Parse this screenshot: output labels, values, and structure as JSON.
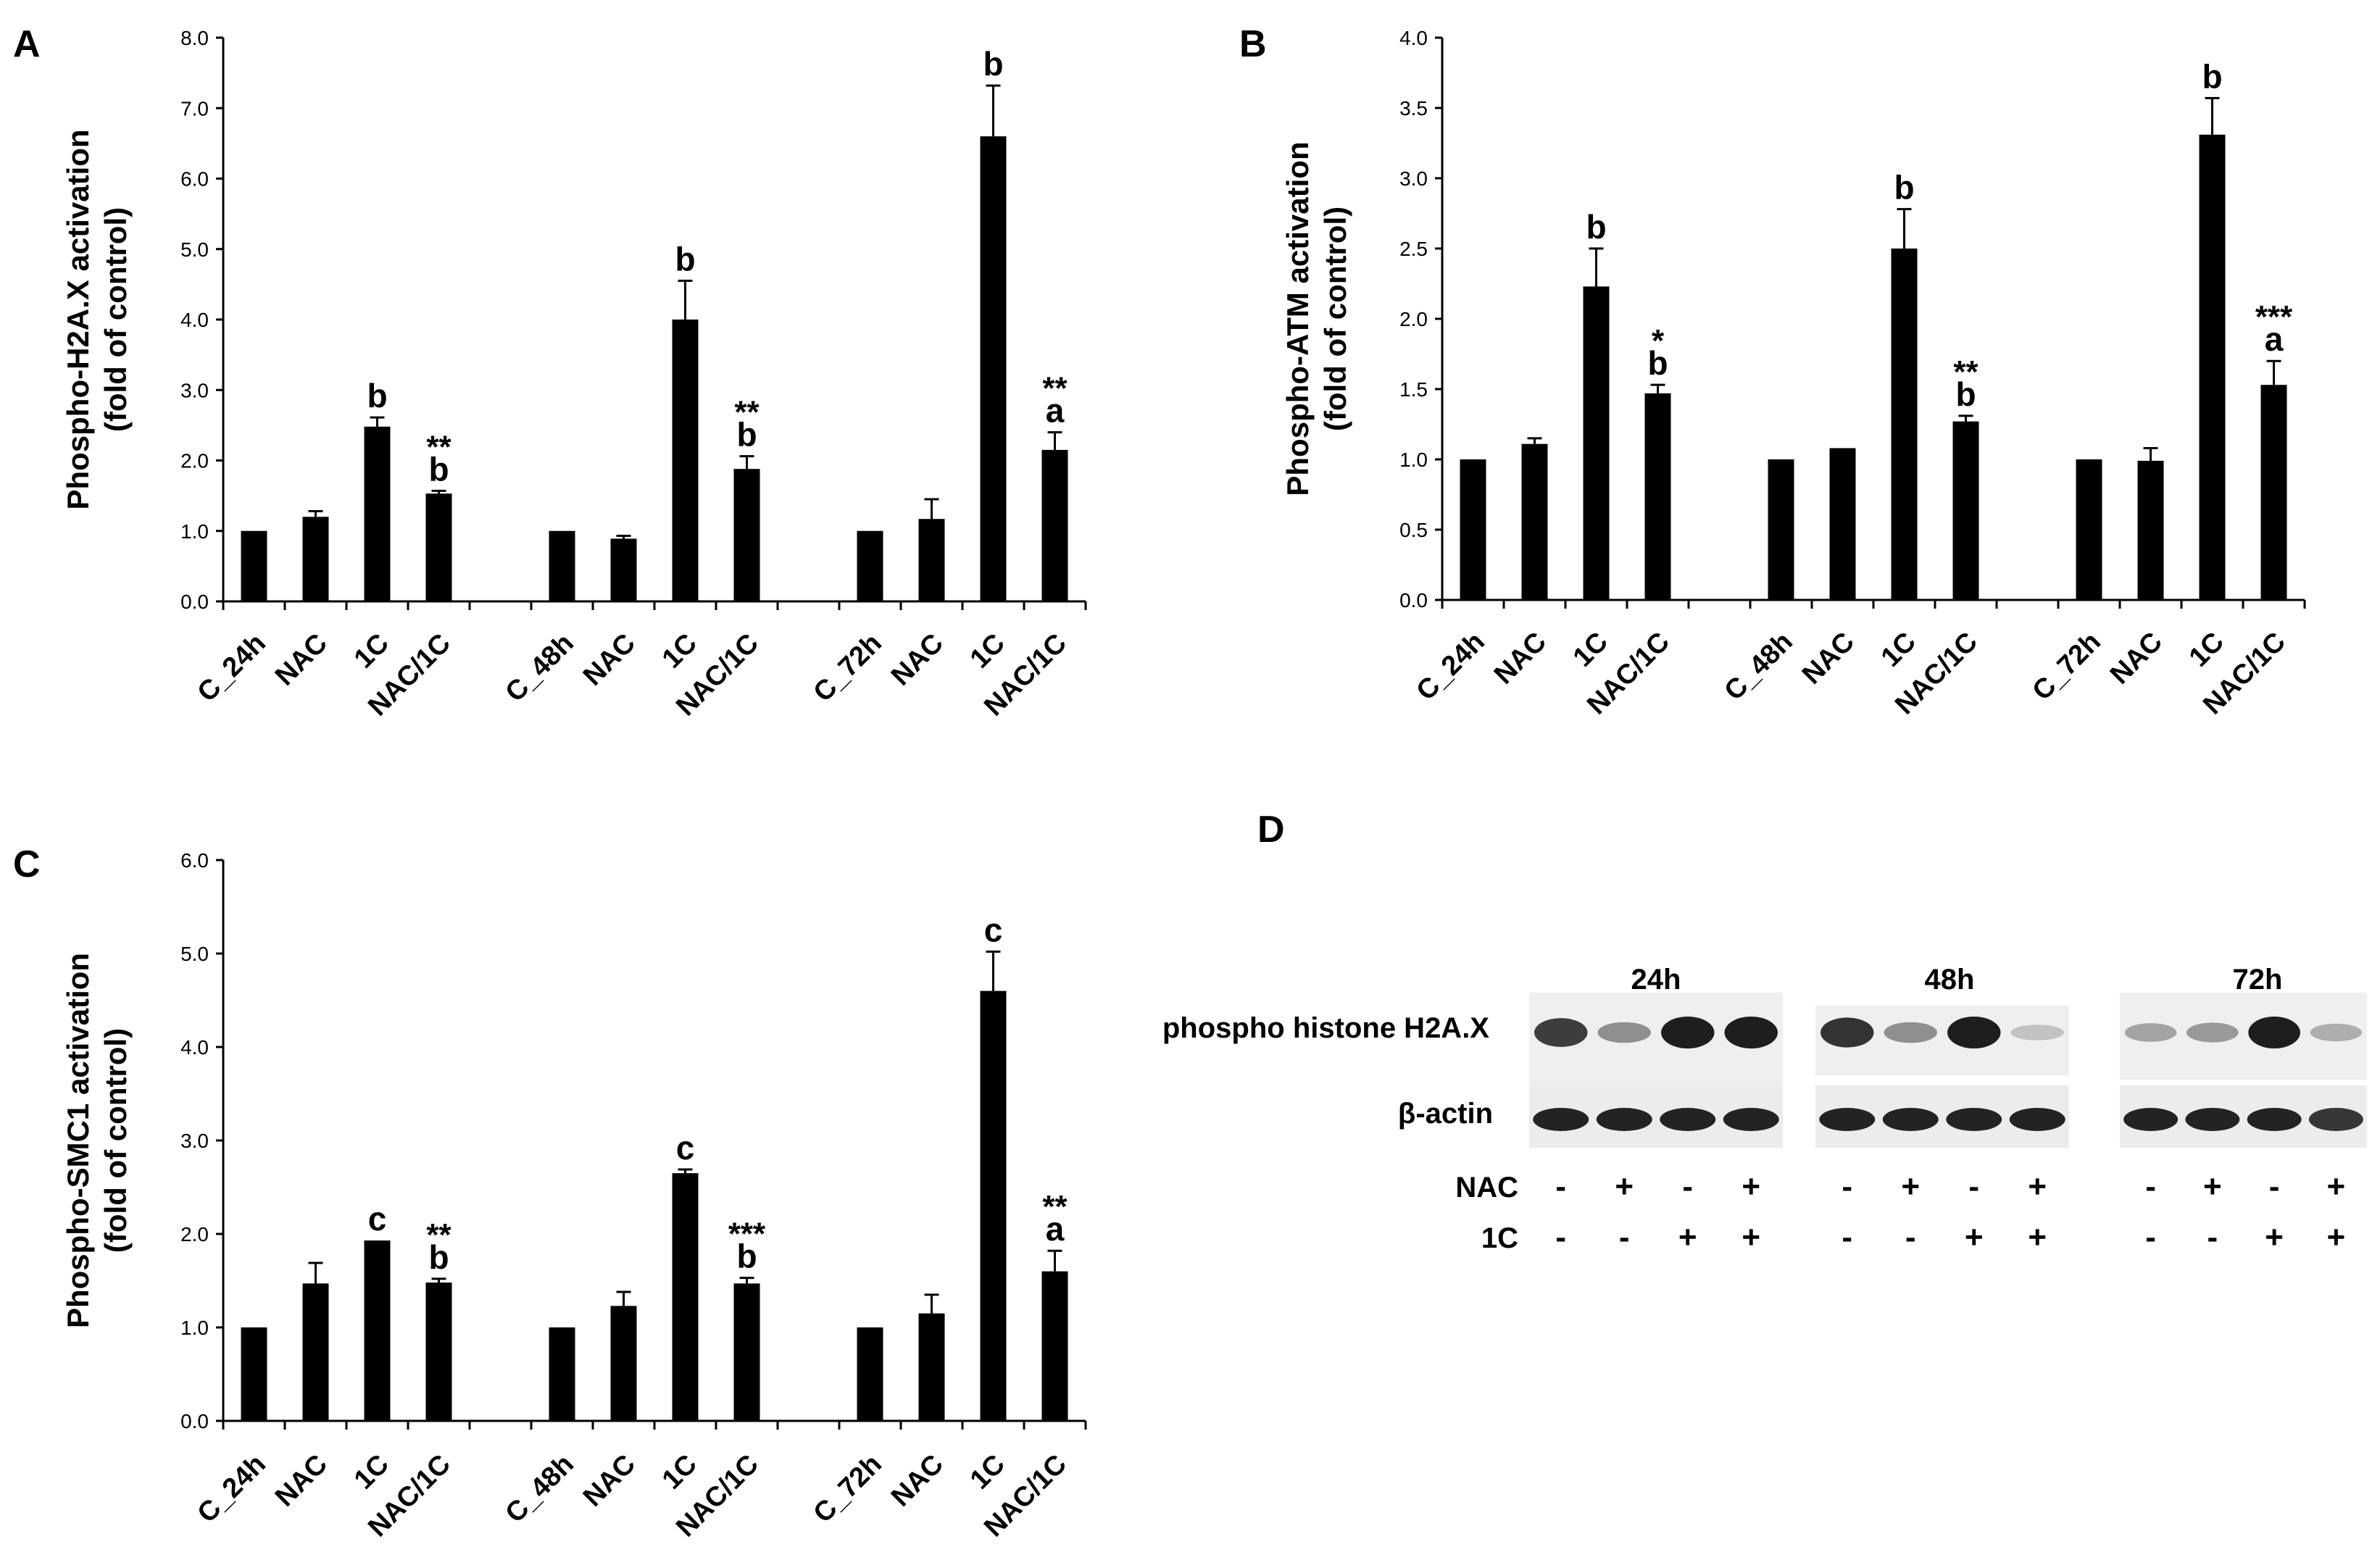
{
  "chart_data": [
    {
      "panel": "A",
      "type": "bar",
      "ylabel_line1": "Phospho-H2A.X activation",
      "ylabel_line2": "(fold of control)",
      "ylim": [
        0,
        8
      ],
      "yticks": [
        "0.0",
        "1.0",
        "2.0",
        "3.0",
        "4.0",
        "5.0",
        "6.0",
        "7.0",
        "8.0"
      ],
      "categories": [
        "C_24h",
        "NAC",
        "1C",
        "NAC/1C",
        "C_48h",
        "NAC",
        "1C",
        "NAC/1C",
        "C_72h",
        "NAC",
        "1C",
        "NAC/1C"
      ],
      "values": [
        1.0,
        1.2,
        2.48,
        1.53,
        1.0,
        0.89,
        4.0,
        1.88,
        1.0,
        1.17,
        6.6,
        2.15
      ],
      "errors": [
        0.0,
        0.08,
        0.13,
        0.04,
        0.0,
        0.04,
        0.55,
        0.18,
        0.0,
        0.28,
        0.72,
        0.25
      ],
      "letters": [
        "",
        "",
        "b",
        "b",
        "",
        "",
        "b",
        "b",
        "",
        "",
        "b",
        "a"
      ],
      "stars": [
        "",
        "",
        "",
        "**",
        "",
        "",
        "",
        "**",
        "",
        "",
        "",
        "**"
      ]
    },
    {
      "panel": "B",
      "type": "bar",
      "ylabel_line1": "Phospho-ATM activation",
      "ylabel_line2": "(fold of control)",
      "ylim": [
        0,
        4
      ],
      "yticks": [
        "0.0",
        "0.5",
        "1.0",
        "1.5",
        "2.0",
        "2.5",
        "3.0",
        "3.5",
        "4.0"
      ],
      "categories": [
        "C_24h",
        "NAC",
        "1C",
        "NAC/1C",
        "C_48h",
        "NAC",
        "1C",
        "NAC/1C",
        "C_72h",
        "NAC",
        "1C",
        "NAC/1C"
      ],
      "values": [
        1.0,
        1.11,
        2.23,
        1.47,
        1.0,
        1.08,
        2.5,
        1.27,
        1.0,
        0.99,
        3.31,
        1.53
      ],
      "errors": [
        0.0,
        0.04,
        0.27,
        0.06,
        0.0,
        0.0,
        0.28,
        0.04,
        0.0,
        0.09,
        0.26,
        0.17
      ],
      "letters": [
        "",
        "",
        "b",
        "b",
        "",
        "",
        "b",
        "b",
        "",
        "",
        "b",
        "a"
      ],
      "stars": [
        "",
        "",
        "",
        "*",
        "",
        "",
        "",
        "**",
        "",
        "",
        "",
        "***"
      ]
    },
    {
      "panel": "C",
      "type": "bar",
      "ylabel_line1": "Phospho-SMC1 activation",
      "ylabel_line2": "(fold of control)",
      "ylim": [
        0,
        6
      ],
      "yticks": [
        "0.0",
        "1.0",
        "2.0",
        "3.0",
        "4.0",
        "5.0",
        "6.0"
      ],
      "categories": [
        "C_24h",
        "NAC",
        "1C",
        "NAC/1C",
        "C_48h",
        "NAC",
        "1C",
        "NAC/1C",
        "C_72h",
        "NAC",
        "1C",
        "NAC/1C"
      ],
      "values": [
        1.0,
        1.47,
        1.93,
        1.48,
        1.0,
        1.23,
        2.65,
        1.47,
        1.0,
        1.15,
        4.6,
        1.6
      ],
      "errors": [
        0.0,
        0.22,
        0.0,
        0.04,
        0.0,
        0.15,
        0.04,
        0.06,
        0.0,
        0.2,
        0.42,
        0.22
      ],
      "letters": [
        "",
        "",
        "c",
        "b",
        "",
        "",
        "c",
        "b",
        "",
        "",
        "c",
        "a"
      ],
      "stars": [
        "",
        "",
        "",
        "**",
        "",
        "",
        "",
        "***",
        "",
        "",
        "",
        "**"
      ]
    }
  ],
  "western_blot": {
    "panel": "D",
    "timepoints": [
      "24h",
      "48h",
      "72h"
    ],
    "row_labels": [
      "phospho histone H2A.X",
      "β-actin"
    ],
    "treatment_labels": [
      "NAC",
      "1C"
    ],
    "nac_signs": [
      "-",
      "+",
      "-",
      "+"
    ],
    "c1_signs": [
      "-",
      "-",
      "+",
      "+"
    ],
    "h2ax_intensity": [
      [
        0.85,
        0.45,
        1.0,
        1.0
      ],
      [
        0.9,
        0.45,
        1.0,
        0.2
      ],
      [
        0.35,
        0.4,
        1.0,
        0.3
      ]
    ],
    "actin_intensity": [
      [
        1.0,
        1.0,
        1.0,
        1.0
      ],
      [
        1.0,
        1.0,
        1.0,
        1.0
      ],
      [
        1.0,
        1.0,
        1.0,
        0.9
      ]
    ]
  }
}
